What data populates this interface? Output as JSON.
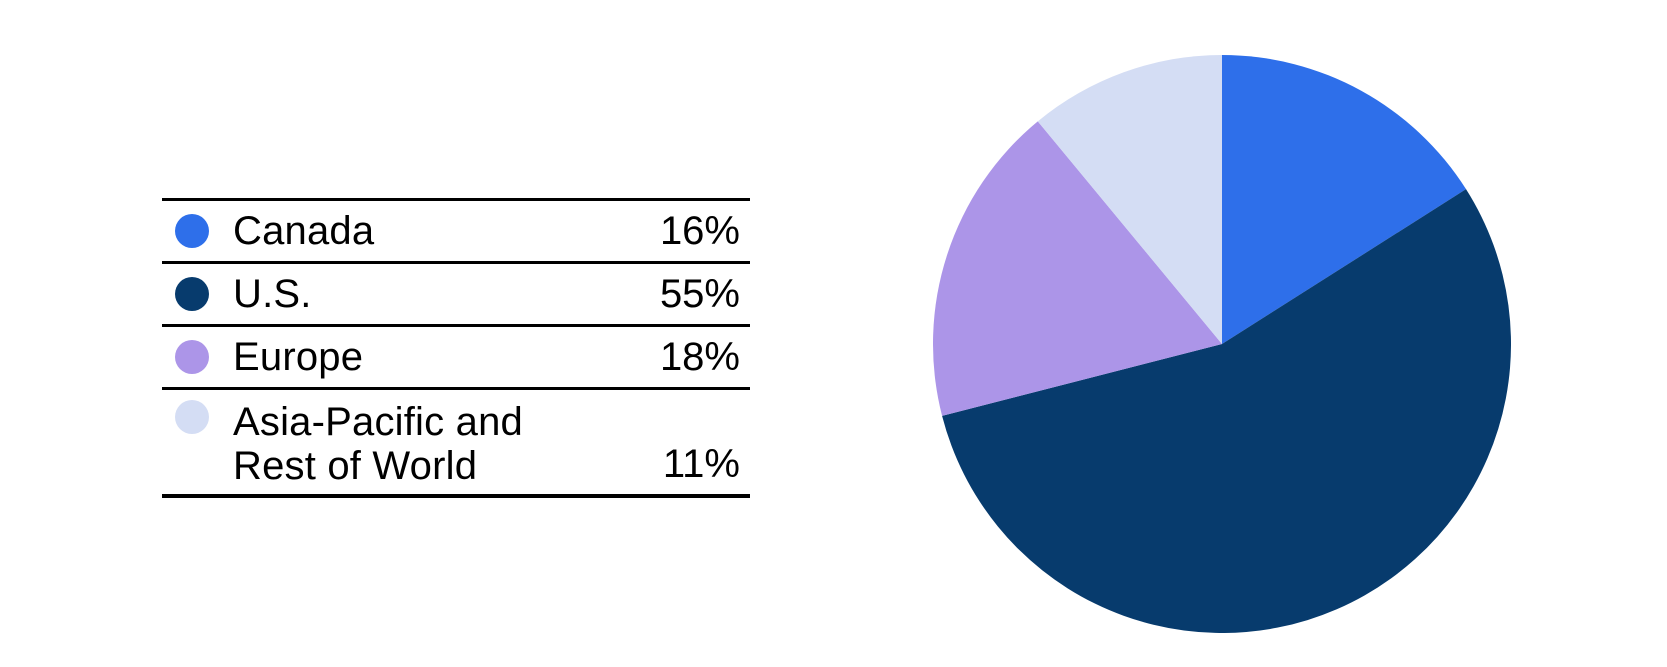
{
  "page": {
    "background": "#ffffff",
    "text_color": "#000000",
    "rule_color": "#000000"
  },
  "chart_data": {
    "type": "pie",
    "categories": [
      "Canada",
      "U.S.",
      "Europe",
      "Asia-Pacific and Rest of World"
    ],
    "values": [
      16,
      55,
      18,
      11
    ],
    "unit": "%",
    "colors": [
      "#2E6FEA",
      "#073B6D",
      "#AC95E8",
      "#D4DDF4"
    ],
    "start_angle_deg": 0,
    "direction": "clockwise",
    "legend_position": "left"
  },
  "legend": {
    "rows": [
      {
        "label": "Canada",
        "value": "16%"
      },
      {
        "label": "U.S.",
        "value": "55%"
      },
      {
        "label": "Europe",
        "value": "18%"
      },
      {
        "label": "Asia-Pacific and\nRest of World",
        "value": "11%"
      }
    ]
  }
}
